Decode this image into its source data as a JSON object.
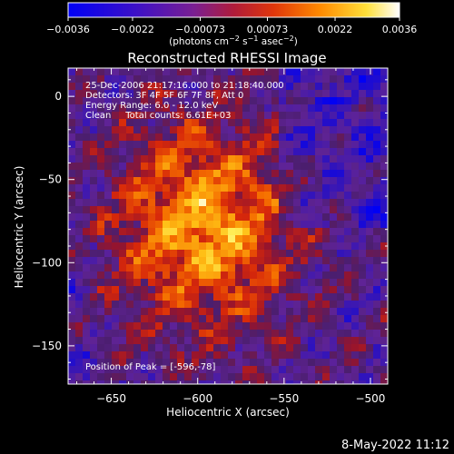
{
  "chart_data": {
    "type": "heatmap",
    "title": "Reconstructed RHESSI Image",
    "xlabel": "Heliocentric X (arcsec)",
    "ylabel": "Heliocentric Y (arcsec)",
    "xlim": [
      -675,
      -490
    ],
    "ylim": [
      -173,
      17
    ],
    "xticks": [
      -650,
      -600,
      -550,
      -500
    ],
    "xtick_labels": [
      "−650",
      "−600",
      "−550",
      "−500"
    ],
    "yticks": [
      0,
      -50,
      -100,
      -150
    ],
    "ytick_labels": [
      "0",
      "−50",
      "−100",
      "−150"
    ],
    "colorbar": {
      "min": -0.0036,
      "max": 0.0036,
      "ticks": [
        -0.0036,
        -0.0022,
        -0.00073,
        0.00073,
        0.0022,
        0.0036
      ],
      "tick_labels": [
        "−0.0036",
        "−0.0022",
        "−0.00073",
        "0.00073",
        "0.0022",
        "0.0036"
      ],
      "unit_prefix": "(photons cm",
      "unit_exp1": "−2",
      "unit_mid": " s",
      "unit_exp2": "−1",
      "unit_mid2": " asec",
      "unit_exp3": "−2",
      "unit_suffix": ")"
    },
    "peak": {
      "x": -596,
      "y": -78
    },
    "annotations": {
      "time": "25-Dec-2006 21:17:16.000 to 21:18:40.000",
      "detectors": "Detectors: 3F 4F 5F 6F 7F 8F, Att 0",
      "energy": "Energy Range: 6.0 - 12.0 keV",
      "clean": "Clean     Total counts: 6.61E+03",
      "peak_label": "Position of Peak = [-596,-78]"
    },
    "colormap": "blue-purple-red-orange-yellow-white",
    "grid": false
  },
  "footer": {
    "date": "8-May-2022 11:12"
  }
}
